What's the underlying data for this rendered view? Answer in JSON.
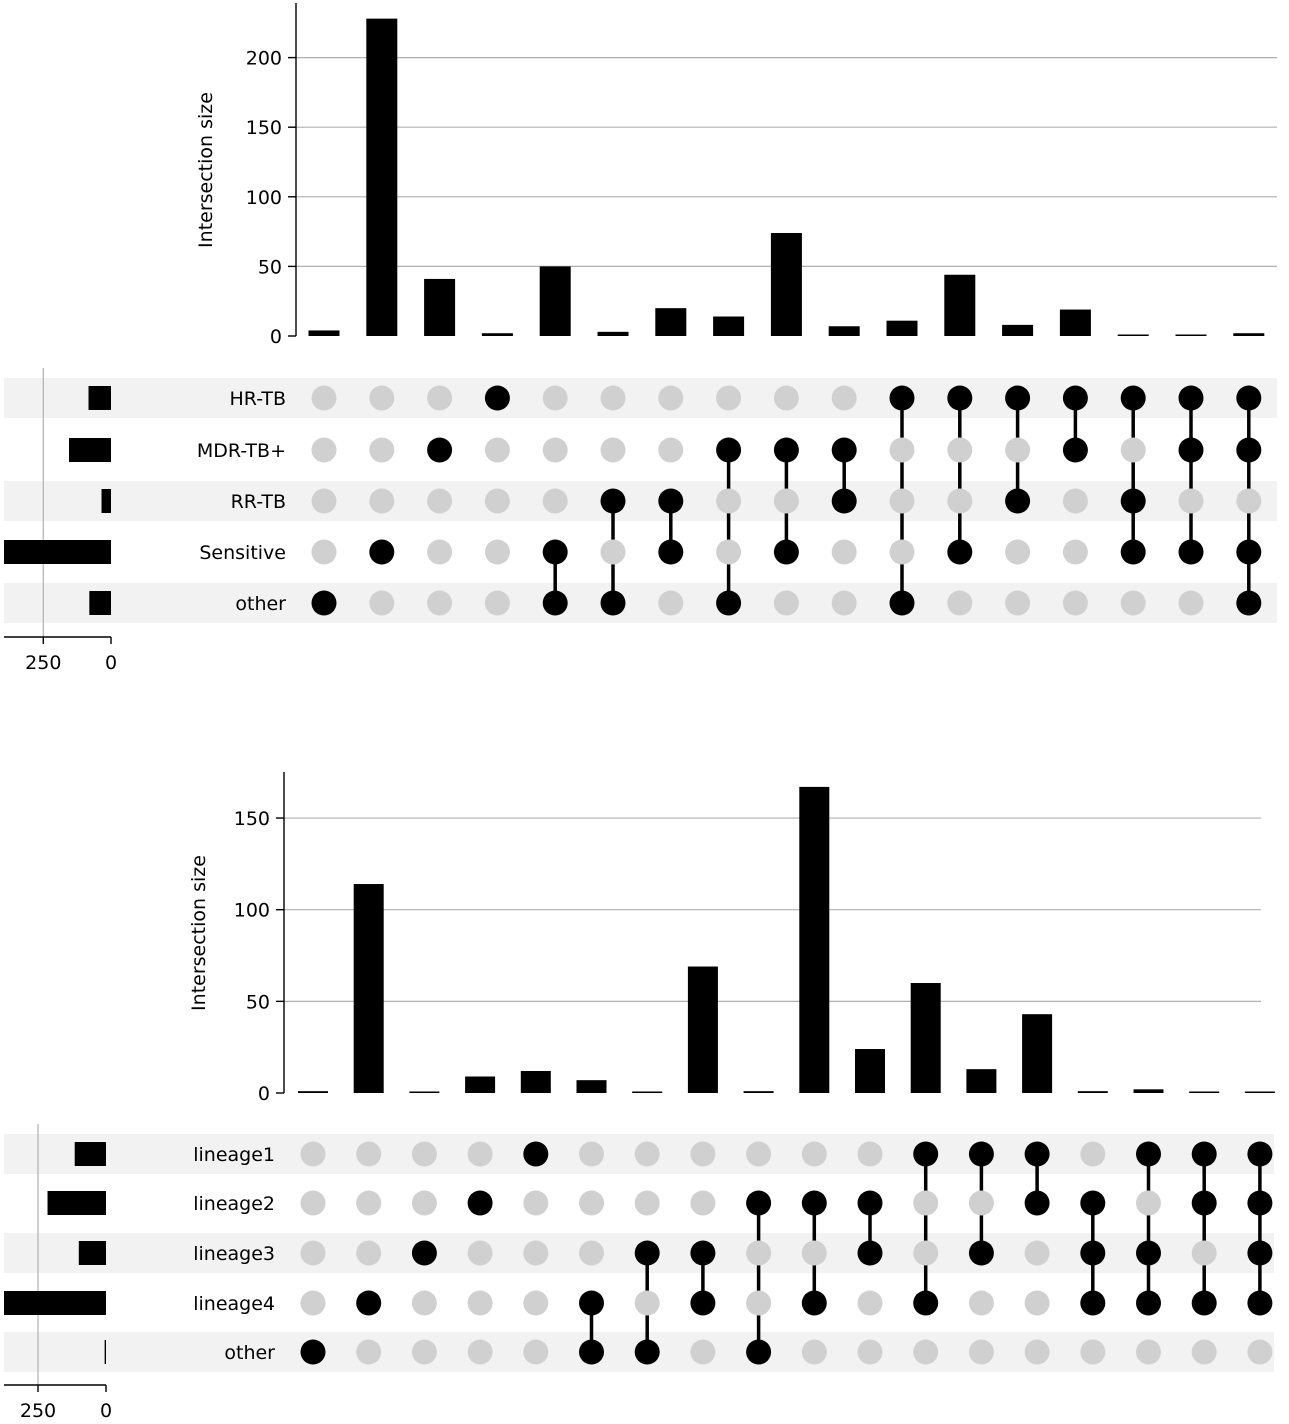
{
  "chart_data": [
    {
      "type": "upset",
      "ylabel": "Intersection size",
      "yticks": [
        0,
        50,
        100,
        150,
        200
      ],
      "ylim": [
        0,
        240
      ],
      "sets": [
        "HR-TB",
        "MDR-TB+",
        "RR-TB",
        "Sensitive",
        "other"
      ],
      "set_sizes": [
        83,
        155,
        35,
        395,
        80
      ],
      "set_size_ticks": [
        250,
        0
      ],
      "set_size_max": 395,
      "intersections": [
        {
          "members": [
            "other"
          ],
          "size": 4
        },
        {
          "members": [
            "Sensitive"
          ],
          "size": 228
        },
        {
          "members": [
            "MDR-TB+"
          ],
          "size": 41
        },
        {
          "members": [
            "HR-TB"
          ],
          "size": 2
        },
        {
          "members": [
            "Sensitive",
            "other"
          ],
          "size": 50
        },
        {
          "members": [
            "RR-TB",
            "other"
          ],
          "size": 3
        },
        {
          "members": [
            "RR-TB",
            "Sensitive"
          ],
          "size": 20
        },
        {
          "members": [
            "MDR-TB+",
            "other"
          ],
          "size": 14
        },
        {
          "members": [
            "MDR-TB+",
            "Sensitive"
          ],
          "size": 74
        },
        {
          "members": [
            "MDR-TB+",
            "RR-TB"
          ],
          "size": 7
        },
        {
          "members": [
            "HR-TB",
            "other"
          ],
          "size": 11
        },
        {
          "members": [
            "HR-TB",
            "Sensitive"
          ],
          "size": 44
        },
        {
          "members": [
            "HR-TB",
            "RR-TB"
          ],
          "size": 8
        },
        {
          "members": [
            "HR-TB",
            "MDR-TB+"
          ],
          "size": 19
        },
        {
          "members": [
            "HR-TB",
            "RR-TB",
            "Sensitive"
          ],
          "size": 1
        },
        {
          "members": [
            "HR-TB",
            "MDR-TB+",
            "Sensitive"
          ],
          "size": 1
        },
        {
          "members": [
            "HR-TB",
            "MDR-TB+",
            "Sensitive",
            "other"
          ],
          "size": 2
        }
      ]
    },
    {
      "type": "upset",
      "ylabel": "Intersection size",
      "yticks": [
        0,
        50,
        100,
        150
      ],
      "ylim": [
        0,
        175
      ],
      "sets": [
        "lineage1",
        "lineage2",
        "lineage3",
        "lineage4",
        "other"
      ],
      "set_sizes": [
        115,
        215,
        100,
        375,
        5
      ],
      "set_size_ticks": [
        250,
        0
      ],
      "set_size_max": 375,
      "intersections": [
        {
          "members": [
            "other"
          ],
          "size": 1
        },
        {
          "members": [
            "lineage4"
          ],
          "size": 114
        },
        {
          "members": [
            "lineage3"
          ],
          "size": 0.5
        },
        {
          "members": [
            "lineage2"
          ],
          "size": 9
        },
        {
          "members": [
            "lineage1"
          ],
          "size": 12
        },
        {
          "members": [
            "lineage4",
            "other"
          ],
          "size": 7
        },
        {
          "members": [
            "lineage3",
            "other"
          ],
          "size": 0.5
        },
        {
          "members": [
            "lineage3",
            "lineage4"
          ],
          "size": 69
        },
        {
          "members": [
            "lineage2",
            "other"
          ],
          "size": 1
        },
        {
          "members": [
            "lineage2",
            "lineage4"
          ],
          "size": 167
        },
        {
          "members": [
            "lineage2",
            "lineage3"
          ],
          "size": 24
        },
        {
          "members": [
            "lineage1",
            "lineage4"
          ],
          "size": 60
        },
        {
          "members": [
            "lineage1",
            "lineage3"
          ],
          "size": 13
        },
        {
          "members": [
            "lineage1",
            "lineage2"
          ],
          "size": 43
        },
        {
          "members": [
            "lineage2",
            "lineage3",
            "lineage4"
          ],
          "size": 1
        },
        {
          "members": [
            "lineage1",
            "lineage3",
            "lineage4"
          ],
          "size": 2
        },
        {
          "members": [
            "lineage1",
            "lineage2",
            "lineage4"
          ],
          "size": 0.5
        },
        {
          "members": [
            "lineage1",
            "lineage2",
            "lineage3",
            "lineage4"
          ],
          "size": 0.5
        }
      ]
    }
  ]
}
